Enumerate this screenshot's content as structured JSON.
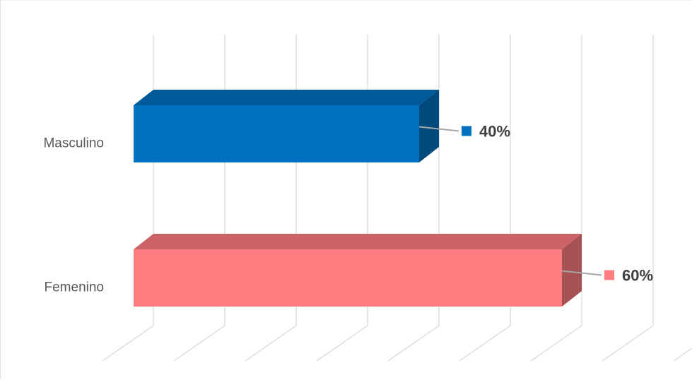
{
  "chart_data": {
    "type": "bar",
    "orientation": "horizontal",
    "style": "3d",
    "categories": [
      "Masculino",
      "Femenino"
    ],
    "values": [
      40,
      60
    ],
    "value_labels": [
      "40%",
      "60%"
    ],
    "colors": [
      "#0070c0",
      "#ff7c80"
    ],
    "xlim": [
      0,
      75
    ],
    "grid": true,
    "legend": "none",
    "title": "",
    "xlabel": "",
    "ylabel": ""
  }
}
